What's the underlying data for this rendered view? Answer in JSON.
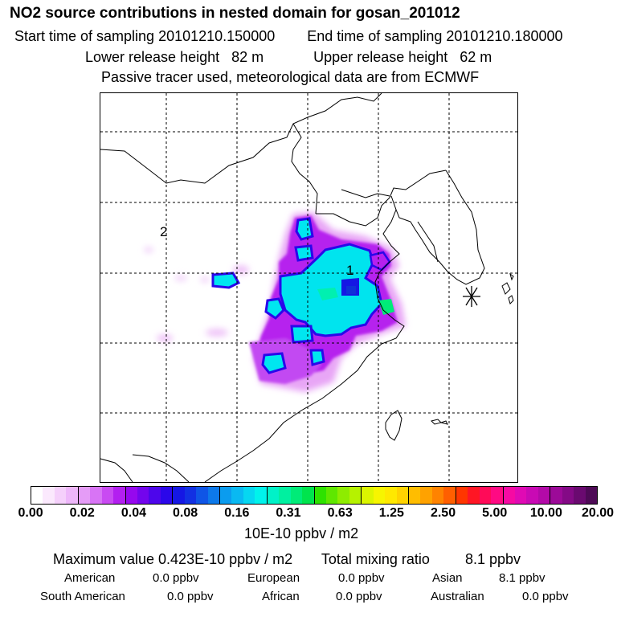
{
  "header": {
    "title": "NO2 source contributions in nested domain for gosan_201012",
    "start_label": "Start time of sampling 20101210.150000",
    "end_label": "End time of sampling 20101210.180000",
    "lower_release": "Lower release height   82 m",
    "upper_release": "Upper release height   62 m",
    "tracer_note": "Passive tracer used, meteorological data are from ECMWF"
  },
  "map": {
    "source_labels": [
      "1",
      "2"
    ],
    "receptor_symbol": "asterisk"
  },
  "colorbar": {
    "ticks": [
      "0.00",
      "0.02",
      "0.04",
      "0.08",
      "0.16",
      "0.31",
      "0.63",
      "1.25",
      "2.50",
      "5.00",
      "10.00",
      "20.00"
    ],
    "unit": "10E-10 ppbv / m2",
    "colors": [
      "#ffffff",
      "#fbe9fd",
      "#f5d0fb",
      "#eeb7fa",
      "#e59cf7",
      "#d874f5",
      "#c94af2",
      "#b31ff0",
      "#9608ee",
      "#7305ed",
      "#4d06eb",
      "#2b07ea",
      "#1517e4",
      "#1230e3",
      "#0f55e6",
      "#0d79ea",
      "#0b9cef",
      "#09b9f2",
      "#06d7f1",
      "#00f3ec",
      "#00f2c8",
      "#00f0a0",
      "#00eb78",
      "#00e44d",
      "#2ee200",
      "#5fe700",
      "#8eec00",
      "#b6f200",
      "#dcf500",
      "#f7f500",
      "#ffe800",
      "#ffd300",
      "#ffbd00",
      "#ffa200",
      "#ff8300",
      "#ff5f00",
      "#ff3600",
      "#ff1624",
      "#ff0a58",
      "#ff0a83",
      "#f60aa3",
      "#e00ab4",
      "#c90ab4",
      "#b30aa8",
      "#9c0a98",
      "#840a86",
      "#6a0a70",
      "#4e0a56"
    ]
  },
  "stats": {
    "maximum_label": "Maximum value  0.423E-10 ppbv / m2",
    "total_label": "Total mixing ratio",
    "total_value": "8.1 ppbv",
    "regions": [
      {
        "name": "American",
        "value": "0.0 ppbv"
      },
      {
        "name": "European",
        "value": "0.0 ppbv"
      },
      {
        "name": "Asian",
        "value": "8.1 ppbv"
      },
      {
        "name": "South American",
        "value": "0.0 ppbv"
      },
      {
        "name": "African",
        "value": "0.0 ppbv"
      },
      {
        "name": "Australian",
        "value": "0.0 ppbv"
      }
    ]
  }
}
